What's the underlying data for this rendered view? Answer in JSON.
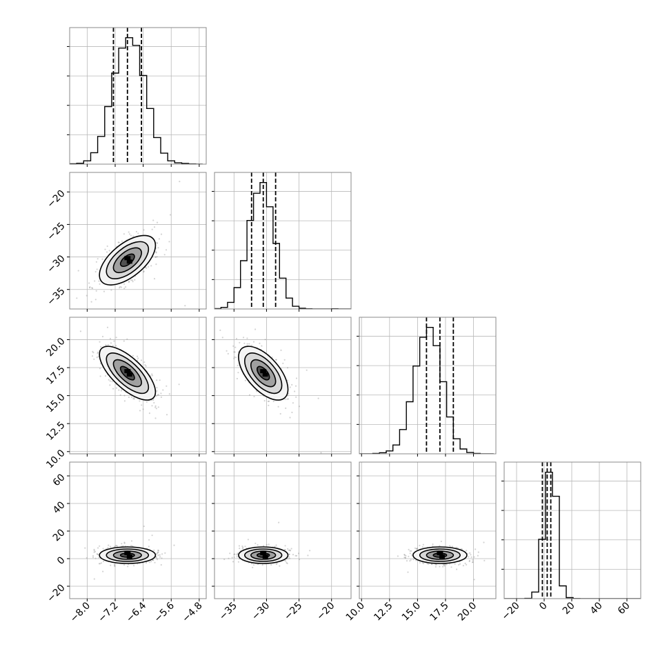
{
  "colors": {
    "contour": "#000000",
    "fill_levels": [
      "#f4f4f4",
      "#d8d8d8",
      "#a0a0a0",
      "#505050",
      "#000000"
    ],
    "scatter": "#808080",
    "grid": "#b8b8b8"
  },
  "chart_data": {
    "type": "corner",
    "title": "",
    "n_parameters": 4,
    "grid": true,
    "parameters": [
      {
        "axis_range": [
          -8.5,
          -4.6
        ],
        "ticks": [
          -8.0,
          -7.2,
          -6.4,
          -5.6,
          -4.8
        ],
        "tick_labels": [
          "−8.0",
          "−7.2",
          "−6.4",
          "−5.6",
          "−4.8"
        ],
        "quantiles": [
          -7.25,
          -6.85,
          -6.45
        ],
        "mean": -6.85,
        "sd": 0.4,
        "hist_bin_edges": [
          -8.5,
          -8.3,
          -8.1,
          -7.9,
          -7.7,
          -7.5,
          -7.3,
          -7.1,
          -6.9,
          -6.7,
          -6.5,
          -6.3,
          -6.1,
          -5.9,
          -5.7,
          -5.5,
          -5.3,
          -5.1,
          -4.9,
          -4.7
        ],
        "hist_counts": [
          2,
          4,
          15,
          52,
          126,
          262,
          414,
          528,
          575,
          540,
          403,
          253,
          121,
          50,
          15,
          6,
          3,
          1,
          0
        ]
      },
      {
        "axis_range": [
          -38,
          -17
        ],
        "ticks": [
          -35,
          -30,
          -25,
          -20
        ],
        "tick_labels": [
          "−35",
          "−30",
          "−25",
          "−20"
        ],
        "quantiles": [
          -32.3,
          -30.5,
          -28.6
        ],
        "mean": -30.5,
        "sd": 1.9,
        "hist_bin_edges": [
          -38,
          -37,
          -36,
          -35,
          -34,
          -33,
          -32,
          -31,
          -30,
          -29,
          -28,
          -27,
          -26,
          -25,
          -24,
          -23,
          -22,
          -21,
          -20,
          -19,
          -18,
          -17
        ],
        "hist_counts": [
          2,
          9,
          37,
          120,
          271,
          497,
          650,
          710,
          574,
          368,
          173,
          61,
          15,
          4,
          1,
          0,
          0,
          0,
          1,
          0,
          0
        ]
      },
      {
        "axis_range": [
          9.8,
          22
        ],
        "ticks": [
          10.0,
          12.5,
          15.0,
          17.5,
          20.0
        ],
        "tick_labels": [
          "10.0",
          "12.5",
          "15.0",
          "17.5",
          "20.0"
        ],
        "quantiles": [
          15.8,
          17.0,
          18.2
        ],
        "mean": 17.0,
        "sd": 1.2,
        "hist_bin_edges": [
          9.8,
          10.4,
          11.0,
          11.6,
          12.2,
          12.8,
          13.4,
          14.0,
          14.6,
          15.2,
          15.8,
          16.4,
          17.0,
          17.6,
          18.2,
          18.8,
          19.4,
          20.0,
          20.6,
          21.2,
          21.8
        ],
        "hist_counts": [
          0,
          0,
          2,
          5,
          13,
          40,
          110,
          236,
          398,
          528,
          573,
          490,
          327,
          167,
          68,
          22,
          6,
          2,
          0,
          0
        ]
      },
      {
        "axis_range": [
          -29,
          70
        ],
        "ticks": [
          -20,
          0,
          20,
          40,
          60
        ],
        "tick_labels": [
          "−20",
          "0",
          "20",
          "40",
          "60"
        ],
        "quantiles": [
          -1.3,
          2.2,
          4.8
        ],
        "mean": 2.5,
        "sd": 3.0,
        "hist_bin_edges": [
          -29,
          -24,
          -19,
          -14,
          -9,
          -4,
          1,
          6,
          11,
          16,
          21,
          26,
          31,
          36,
          41,
          46,
          51,
          56,
          61,
          66,
          71
        ],
        "hist_counts": [
          0,
          0,
          0,
          3,
          77,
          690,
          1470,
          1190,
          148,
          12,
          2,
          0,
          0,
          0,
          0,
          0,
          0,
          0,
          0,
          0
        ]
      }
    ],
    "pairs": [
      {
        "x": 0,
        "y": 1,
        "corr": 0.6
      },
      {
        "x": 0,
        "y": 2,
        "corr": -0.7
      },
      {
        "x": 1,
        "y": 2,
        "corr": -0.6
      },
      {
        "x": 0,
        "y": 3,
        "corr": 0.0
      },
      {
        "x": 1,
        "y": 3,
        "corr": 0.0
      },
      {
        "x": 2,
        "y": 3,
        "corr": 0.0
      }
    ]
  }
}
